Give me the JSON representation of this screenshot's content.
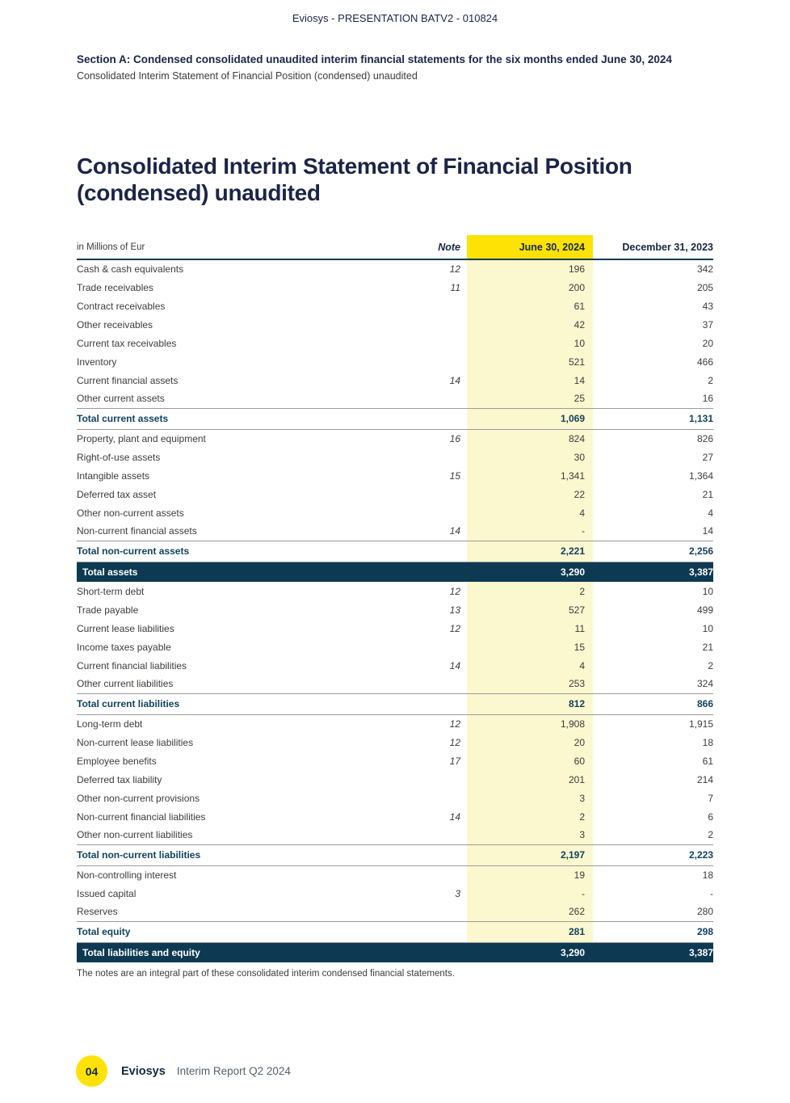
{
  "page": {
    "header": "Eviosys - PRESENTATION BATV2 - 010824",
    "section_heading": "Section A: Condensed consolidated unaudited interim financial statements for the six months ended June 30, 2024",
    "section_subheading": "Consolidated Interim Statement of Financial Position (condensed) unaudited",
    "title_line1": "Consolidated Interim Statement of Financial Position",
    "title_line2": "(condensed) unaudited",
    "footnote": "The notes are an integral part of these consolidated interim condensed financial statements.",
    "footer": {
      "page_number": "04",
      "brand": "Eviosys",
      "report": "Interim Report Q2 2024"
    }
  },
  "colors": {
    "accent_yellow": "#ffe205",
    "pale_yellow": "#fbf7cf",
    "navy_bar": "#0d3a52",
    "total_text_navy": "#11425e",
    "heading_navy": "#1b2547"
  },
  "table": {
    "unit_label": "in Millions of Eur",
    "columns": [
      "Note",
      "June 30, 2024",
      "December 31, 2023"
    ],
    "rows": [
      {
        "label": "Cash & cash equivalents",
        "note": "12",
        "jun": "196",
        "dec": "342",
        "style": "normal"
      },
      {
        "label": "Trade receivables",
        "note": "11",
        "jun": "200",
        "dec": "205",
        "style": "normal"
      },
      {
        "label": "Contract receivables",
        "note": "",
        "jun": "61",
        "dec": "43",
        "style": "normal"
      },
      {
        "label": "Other receivables",
        "note": "",
        "jun": "42",
        "dec": "37",
        "style": "normal"
      },
      {
        "label": "Current tax receivables",
        "note": "",
        "jun": "10",
        "dec": "20",
        "style": "normal"
      },
      {
        "label": "Inventory",
        "note": "",
        "jun": "521",
        "dec": "466",
        "style": "normal"
      },
      {
        "label": "Current financial assets",
        "note": "14",
        "jun": "14",
        "dec": "2",
        "style": "normal"
      },
      {
        "label": "Other current assets",
        "note": "",
        "jun": "25",
        "dec": "16",
        "style": "normal"
      },
      {
        "label": "Total current assets",
        "note": "",
        "jun": "1,069",
        "dec": "1,131",
        "style": "total"
      },
      {
        "label": "Property, plant and equipment",
        "note": "16",
        "jun": "824",
        "dec": "826",
        "style": "normal"
      },
      {
        "label": "Right-of-use assets",
        "note": "",
        "jun": "30",
        "dec": "27",
        "style": "normal"
      },
      {
        "label": "Intangible assets",
        "note": "15",
        "jun": "1,341",
        "dec": "1,364",
        "style": "normal"
      },
      {
        "label": "Deferred tax asset",
        "note": "",
        "jun": "22",
        "dec": "21",
        "style": "normal"
      },
      {
        "label": "Other non-current assets",
        "note": "",
        "jun": "4",
        "dec": "4",
        "style": "normal"
      },
      {
        "label": "Non-current financial assets",
        "note": "14",
        "jun": "-",
        "dec": "14",
        "style": "normal"
      },
      {
        "label": "Total non-current assets",
        "note": "",
        "jun": "2,221",
        "dec": "2,256",
        "style": "total"
      },
      {
        "label": "Total assets",
        "note": "",
        "jun": "3,290",
        "dec": "3,387",
        "style": "grand"
      },
      {
        "label": "Short-term debt",
        "note": "12",
        "jun": "2",
        "dec": "10",
        "style": "normal"
      },
      {
        "label": "Trade payable",
        "note": "13",
        "jun": "527",
        "dec": "499",
        "style": "normal"
      },
      {
        "label": "Current lease liabilities",
        "note": "12",
        "jun": "11",
        "dec": "10",
        "style": "normal"
      },
      {
        "label": "Income taxes payable",
        "note": "",
        "jun": "15",
        "dec": "21",
        "style": "normal"
      },
      {
        "label": "Current financial liabilities",
        "note": "14",
        "jun": "4",
        "dec": "2",
        "style": "normal"
      },
      {
        "label": "Other current liabilities",
        "note": "",
        "jun": "253",
        "dec": "324",
        "style": "normal"
      },
      {
        "label": "Total current liabilities",
        "note": "",
        "jun": "812",
        "dec": "866",
        "style": "total"
      },
      {
        "label": "Long-term debt",
        "note": "12",
        "jun": "1,908",
        "dec": "1,915",
        "style": "normal"
      },
      {
        "label": "Non-current lease liabilities",
        "note": "12",
        "jun": "20",
        "dec": "18",
        "style": "normal"
      },
      {
        "label": "Employee benefits",
        "note": "17",
        "jun": "60",
        "dec": "61",
        "style": "normal"
      },
      {
        "label": "Deferred tax liability",
        "note": "",
        "jun": "201",
        "dec": "214",
        "style": "normal"
      },
      {
        "label": "Other non-current provisions",
        "note": "",
        "jun": "3",
        "dec": "7",
        "style": "normal"
      },
      {
        "label": "Non-current financial liabilities",
        "note": "14",
        "jun": "2",
        "dec": "6",
        "style": "normal"
      },
      {
        "label": "Other non-current liabilities",
        "note": "",
        "jun": "3",
        "dec": "2",
        "style": "normal"
      },
      {
        "label": "Total non-current liabilities",
        "note": "",
        "jun": "2,197",
        "dec": "2,223",
        "style": "total"
      },
      {
        "label": "Non-controlling interest",
        "note": "",
        "jun": "19",
        "dec": "18",
        "style": "normal"
      },
      {
        "label": "Issued capital",
        "note": "3",
        "jun": "-",
        "dec": "-",
        "style": "normal"
      },
      {
        "label": "Reserves",
        "note": "",
        "jun": "262",
        "dec": "280",
        "style": "normal"
      },
      {
        "label": "Total equity",
        "note": "",
        "jun": "281",
        "dec": "298",
        "style": "total"
      },
      {
        "label": "Total liabilities and equity",
        "note": "",
        "jun": "3,290",
        "dec": "3,387",
        "style": "grand"
      }
    ]
  }
}
